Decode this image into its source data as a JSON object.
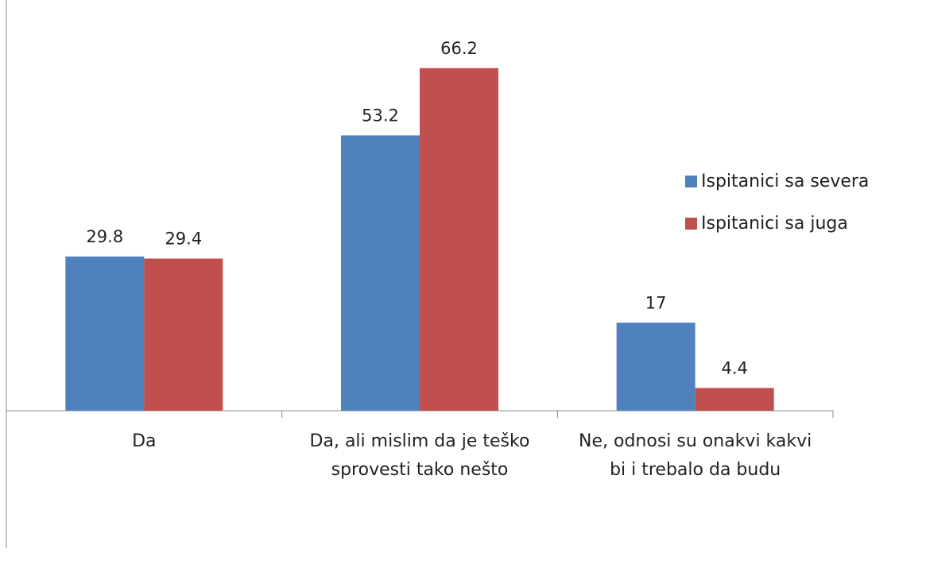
{
  "chart_data": {
    "type": "bar",
    "categories": [
      "Da",
      "Da, ali mislim da je teško sprovesti tako nešto",
      "Ne, odnosi su onakvi kakvi bi i trebalo da budu"
    ],
    "series": [
      {
        "name": "Ispitanici sa severa",
        "color": "#4f81bd",
        "values": [
          29.8,
          53.2,
          17
        ]
      },
      {
        "name": "Ispitanici sa juga",
        "color": "#c0504d",
        "values": [
          29.4,
          66.2,
          4.4
        ]
      }
    ],
    "ylim": [
      0,
      70
    ],
    "legend": "right"
  }
}
